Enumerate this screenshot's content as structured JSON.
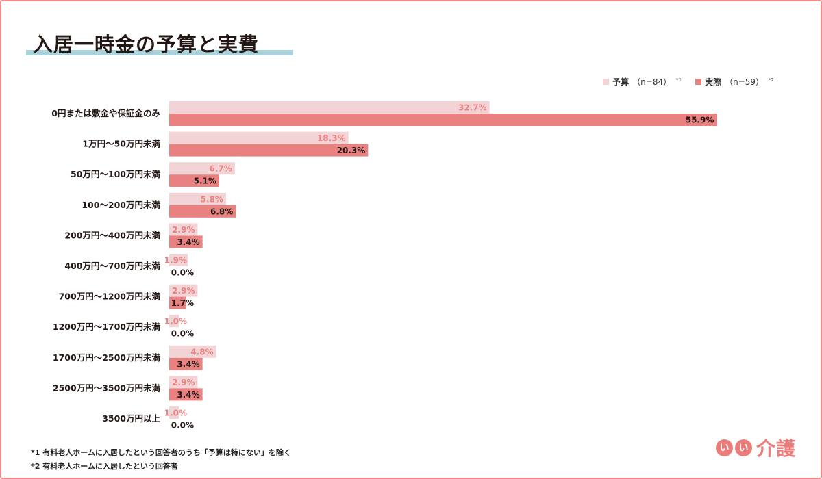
{
  "page": {
    "title": "入居一時金の予算と実費"
  },
  "colors": {
    "budget_bar": "#f2d4d6",
    "actual_bar": "#e8817f",
    "budget_label": "#e8817f",
    "actual_label": "#231815",
    "title_underline": "#a9d1d9",
    "frame_border": "#ec8e8c",
    "brand": "#ec7c79"
  },
  "legend": {
    "budget_name": "予算",
    "budget_n": "（n=84）",
    "budget_sup": "*1",
    "actual_name": "実際",
    "actual_n": "（n=59）",
    "actual_sup": "*2"
  },
  "chart_data": {
    "type": "bar",
    "orientation": "horizontal",
    "categories": [
      "0円または敷金や保証金のみ",
      "1万円～50万円未満",
      "50万円～100万円未満",
      "100～200万円未満",
      "200万円～400万円未満",
      "400万円～700万円未満",
      "700万円～1200万円未満",
      "1200万円～1700万円未満",
      "1700万円～2500万円未満",
      "2500万円～3500万円未満",
      "3500万円以上"
    ],
    "series": [
      {
        "name": "予算",
        "values": [
          32.7,
          18.3,
          6.7,
          5.8,
          2.9,
          1.9,
          2.9,
          1.0,
          4.8,
          2.9,
          1.0
        ],
        "labels": [
          "32.7%",
          "18.3%",
          "6.7%",
          "5.8%",
          "2.9%",
          "1.9%",
          "2.9%",
          "1.0%",
          "4.8%",
          "2.9%",
          "1.0%"
        ]
      },
      {
        "name": "実際",
        "values": [
          55.9,
          20.3,
          5.1,
          6.8,
          3.4,
          0.0,
          1.7,
          0.0,
          3.4,
          3.4,
          0.0
        ],
        "labels": [
          "55.9%",
          "20.3%",
          "5.1%",
          "6.8%",
          "3.4%",
          "0.0%",
          "1.7%",
          "0.0%",
          "3.4%",
          "3.4%",
          "0.0%"
        ]
      }
    ],
    "xlim": [
      0,
      56
    ],
    "grid": false,
    "legend_position": "top-right"
  },
  "footnotes": [
    "*1 有料老人ホームに入居したという回答者のうち「予算は特にない」を除く",
    "*2 有料老人ホームに入居したという回答者"
  ],
  "logo": {
    "circle_1": "い",
    "circle_2": "い",
    "text": "介護"
  }
}
